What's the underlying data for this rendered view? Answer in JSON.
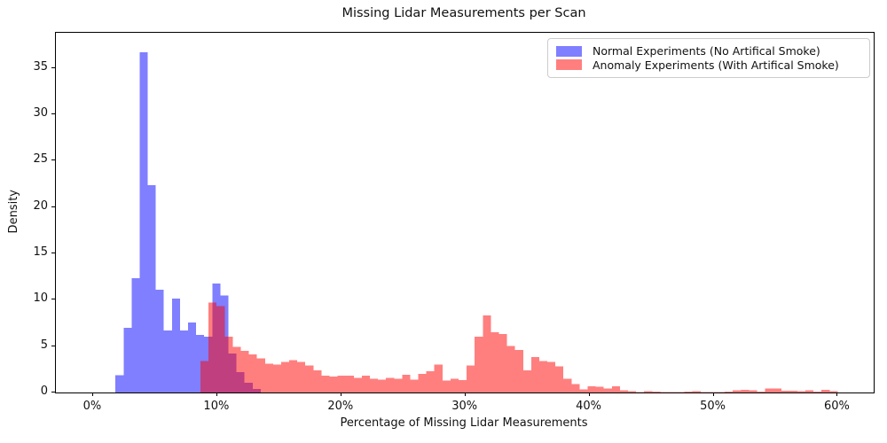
{
  "title": "Missing Lidar Measurements per Scan",
  "axes": {
    "xlabel": "Percentage of Missing Lidar Measurements",
    "ylabel": "Density"
  },
  "legend": {
    "border_color": "#cccccc",
    "items": [
      {
        "label": "Normal Experiments (No Artifical Smoke)",
        "color": "rgba(0,0,255,0.5)",
        "observed_fill": "#8080ff"
      },
      {
        "label": "Anomaly Experiments (With Artifical Smoke)",
        "color": "rgba(255,0,0,0.5)",
        "observed_fill": "#ff8080"
      }
    ]
  },
  "colors": {
    "normal_fill_on_white": "#8080ff",
    "anomaly_fill_on_white": "#ff8080",
    "overlap_fill_on_white": "#bf4080",
    "spine": "#000000"
  },
  "chart_data": {
    "type": "bar",
    "subtype": "overlaid-density-histograms",
    "title": "Missing Lidar Measurements per Scan",
    "xlabel": "Percentage of Missing Lidar Measurements",
    "ylabel": "Density",
    "xlim": [
      -3.0,
      62.9
    ],
    "ylim": [
      0,
      38.8
    ],
    "grid": false,
    "legend_position": "upper right",
    "x_ticks": [
      {
        "value": 0,
        "label": "0%"
      },
      {
        "value": 10,
        "label": "10%"
      },
      {
        "value": 20,
        "label": "20%"
      },
      {
        "value": 30,
        "label": "30%"
      },
      {
        "value": 40,
        "label": "40%"
      },
      {
        "value": 50,
        "label": "50%"
      },
      {
        "value": 60,
        "label": "60%"
      }
    ],
    "y_ticks": [
      {
        "value": 0,
        "label": "0"
      },
      {
        "value": 5,
        "label": "5"
      },
      {
        "value": 10,
        "label": "10"
      },
      {
        "value": 15,
        "label": "15"
      },
      {
        "value": 20,
        "label": "20"
      },
      {
        "value": 25,
        "label": "25"
      },
      {
        "value": 30,
        "label": "30"
      },
      {
        "value": 35,
        "label": "35"
      }
    ],
    "series": [
      {
        "name": "Normal Experiments (No Artifical Smoke)",
        "color": "rgba(0,0,255,0.5)",
        "bin_start_percent": 1.8,
        "bin_width_percent": 0.65,
        "densities": [
          1.85,
          7.0,
          12.35,
          36.7,
          22.35,
          11.1,
          6.7,
          10.15,
          6.7,
          7.55,
          6.2,
          6.0,
          11.75,
          10.45,
          4.2,
          2.2,
          1.05,
          0.4
        ]
      },
      {
        "name": "Anomaly Experiments (With Artifical Smoke)",
        "color": "rgba(255,0,0,0.5)",
        "bin_start_percent": 8.65,
        "bin_width_percent": 0.65,
        "densities": [
          3.4,
          9.7,
          9.3,
          6.0,
          4.9,
          4.5,
          4.1,
          3.7,
          3.1,
          3.0,
          3.3,
          3.5,
          3.3,
          2.9,
          2.4,
          1.8,
          1.7,
          1.8,
          1.8,
          1.6,
          1.8,
          1.5,
          1.4,
          1.6,
          1.5,
          1.9,
          1.4,
          2.0,
          2.3,
          3.0,
          1.3,
          1.5,
          1.35,
          2.9,
          6.0,
          8.3,
          6.5,
          6.3,
          5.0,
          4.6,
          2.4,
          3.8,
          3.4,
          3.3,
          2.8,
          1.5,
          0.9,
          0.35,
          0.65,
          0.6,
          0.45,
          0.65,
          0.25,
          0.15,
          0.05,
          0.15,
          0.1,
          0.05,
          0.05,
          0.05,
          0.1,
          0.15,
          0.05,
          0.05,
          0.05,
          0.1,
          0.25,
          0.3,
          0.25,
          0.1,
          0.45,
          0.45,
          0.2,
          0.2,
          0.15,
          0.25,
          0.1,
          0.3,
          0.15
        ]
      }
    ]
  }
}
